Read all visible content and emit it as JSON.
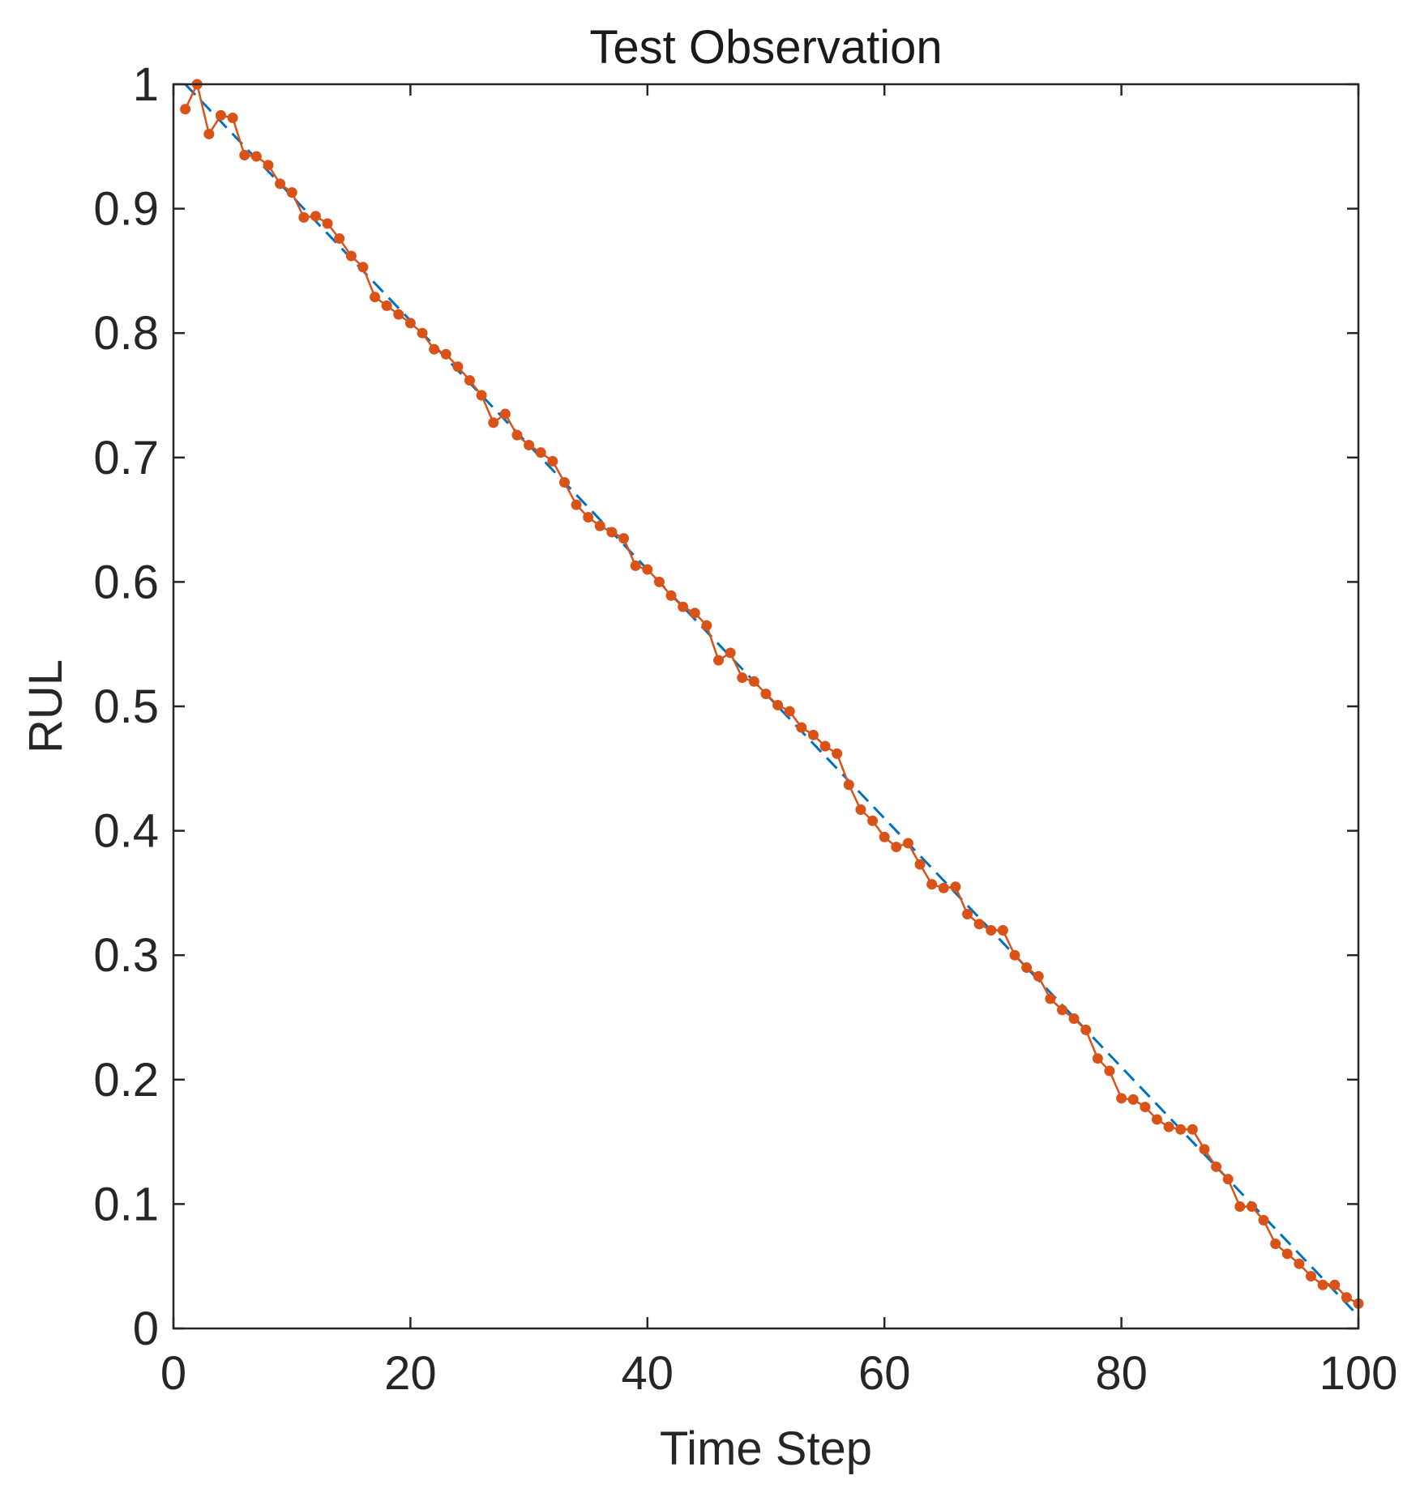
{
  "chart_data": {
    "type": "line",
    "title": "Test Observation",
    "xlabel": "Time Step",
    "ylabel": "RUL",
    "xlim": [
      0,
      100
    ],
    "ylim": [
      0,
      1
    ],
    "x_ticks": [
      0,
      20,
      40,
      60,
      80,
      100
    ],
    "x_tick_labels": [
      "0",
      "20",
      "40",
      "60",
      "80",
      "100"
    ],
    "y_ticks": [
      0,
      0.1,
      0.2,
      0.3,
      0.4,
      0.5,
      0.6,
      0.7,
      0.8,
      0.9,
      1
    ],
    "y_tick_labels": [
      "0",
      "0.1",
      "0.2",
      "0.3",
      "0.4",
      "0.5",
      "0.6",
      "0.7",
      "0.8",
      "0.9",
      "1"
    ],
    "grid": false,
    "box": true,
    "series": [
      {
        "style": "dashed",
        "color": "#0072BD",
        "marker": "none",
        "x": [
          1,
          100
        ],
        "y": [
          1.0,
          0.01
        ]
      },
      {
        "style": "solid",
        "color": "#D95319",
        "marker": "circle",
        "x": [
          1,
          2,
          3,
          4,
          5,
          6,
          7,
          8,
          9,
          10,
          11,
          12,
          13,
          14,
          15,
          16,
          17,
          18,
          19,
          20,
          21,
          22,
          23,
          24,
          25,
          26,
          27,
          28,
          29,
          30,
          31,
          32,
          33,
          34,
          35,
          36,
          37,
          38,
          39,
          40,
          41,
          42,
          43,
          44,
          45,
          46,
          47,
          48,
          49,
          50,
          51,
          52,
          53,
          54,
          55,
          56,
          57,
          58,
          59,
          60,
          61,
          62,
          63,
          64,
          65,
          66,
          67,
          68,
          69,
          70,
          71,
          72,
          73,
          74,
          75,
          76,
          77,
          78,
          79,
          80,
          81,
          82,
          83,
          84,
          85,
          86,
          87,
          88,
          89,
          90,
          91,
          92,
          93,
          94,
          95,
          96,
          97,
          98,
          99,
          100
        ],
        "y": [
          0.98,
          1.0,
          0.96,
          0.975,
          0.973,
          0.943,
          0.942,
          0.935,
          0.92,
          0.913,
          0.893,
          0.894,
          0.888,
          0.876,
          0.862,
          0.853,
          0.829,
          0.822,
          0.815,
          0.808,
          0.8,
          0.787,
          0.783,
          0.773,
          0.762,
          0.75,
          0.728,
          0.735,
          0.718,
          0.71,
          0.704,
          0.697,
          0.68,
          0.662,
          0.652,
          0.645,
          0.64,
          0.635,
          0.613,
          0.61,
          0.6,
          0.589,
          0.58,
          0.575,
          0.565,
          0.537,
          0.543,
          0.523,
          0.52,
          0.51,
          0.501,
          0.496,
          0.483,
          0.477,
          0.468,
          0.462,
          0.437,
          0.417,
          0.408,
          0.395,
          0.387,
          0.39,
          0.373,
          0.357,
          0.354,
          0.355,
          0.333,
          0.325,
          0.32,
          0.32,
          0.3,
          0.29,
          0.283,
          0.265,
          0.256,
          0.249,
          0.24,
          0.217,
          0.207,
          0.185,
          0.184,
          0.178,
          0.168,
          0.162,
          0.16,
          0.16,
          0.144,
          0.13,
          0.12,
          0.098,
          0.098,
          0.087,
          0.068,
          0.06,
          0.052,
          0.042,
          0.035,
          0.035,
          0.025,
          0.02
        ]
      }
    ]
  }
}
